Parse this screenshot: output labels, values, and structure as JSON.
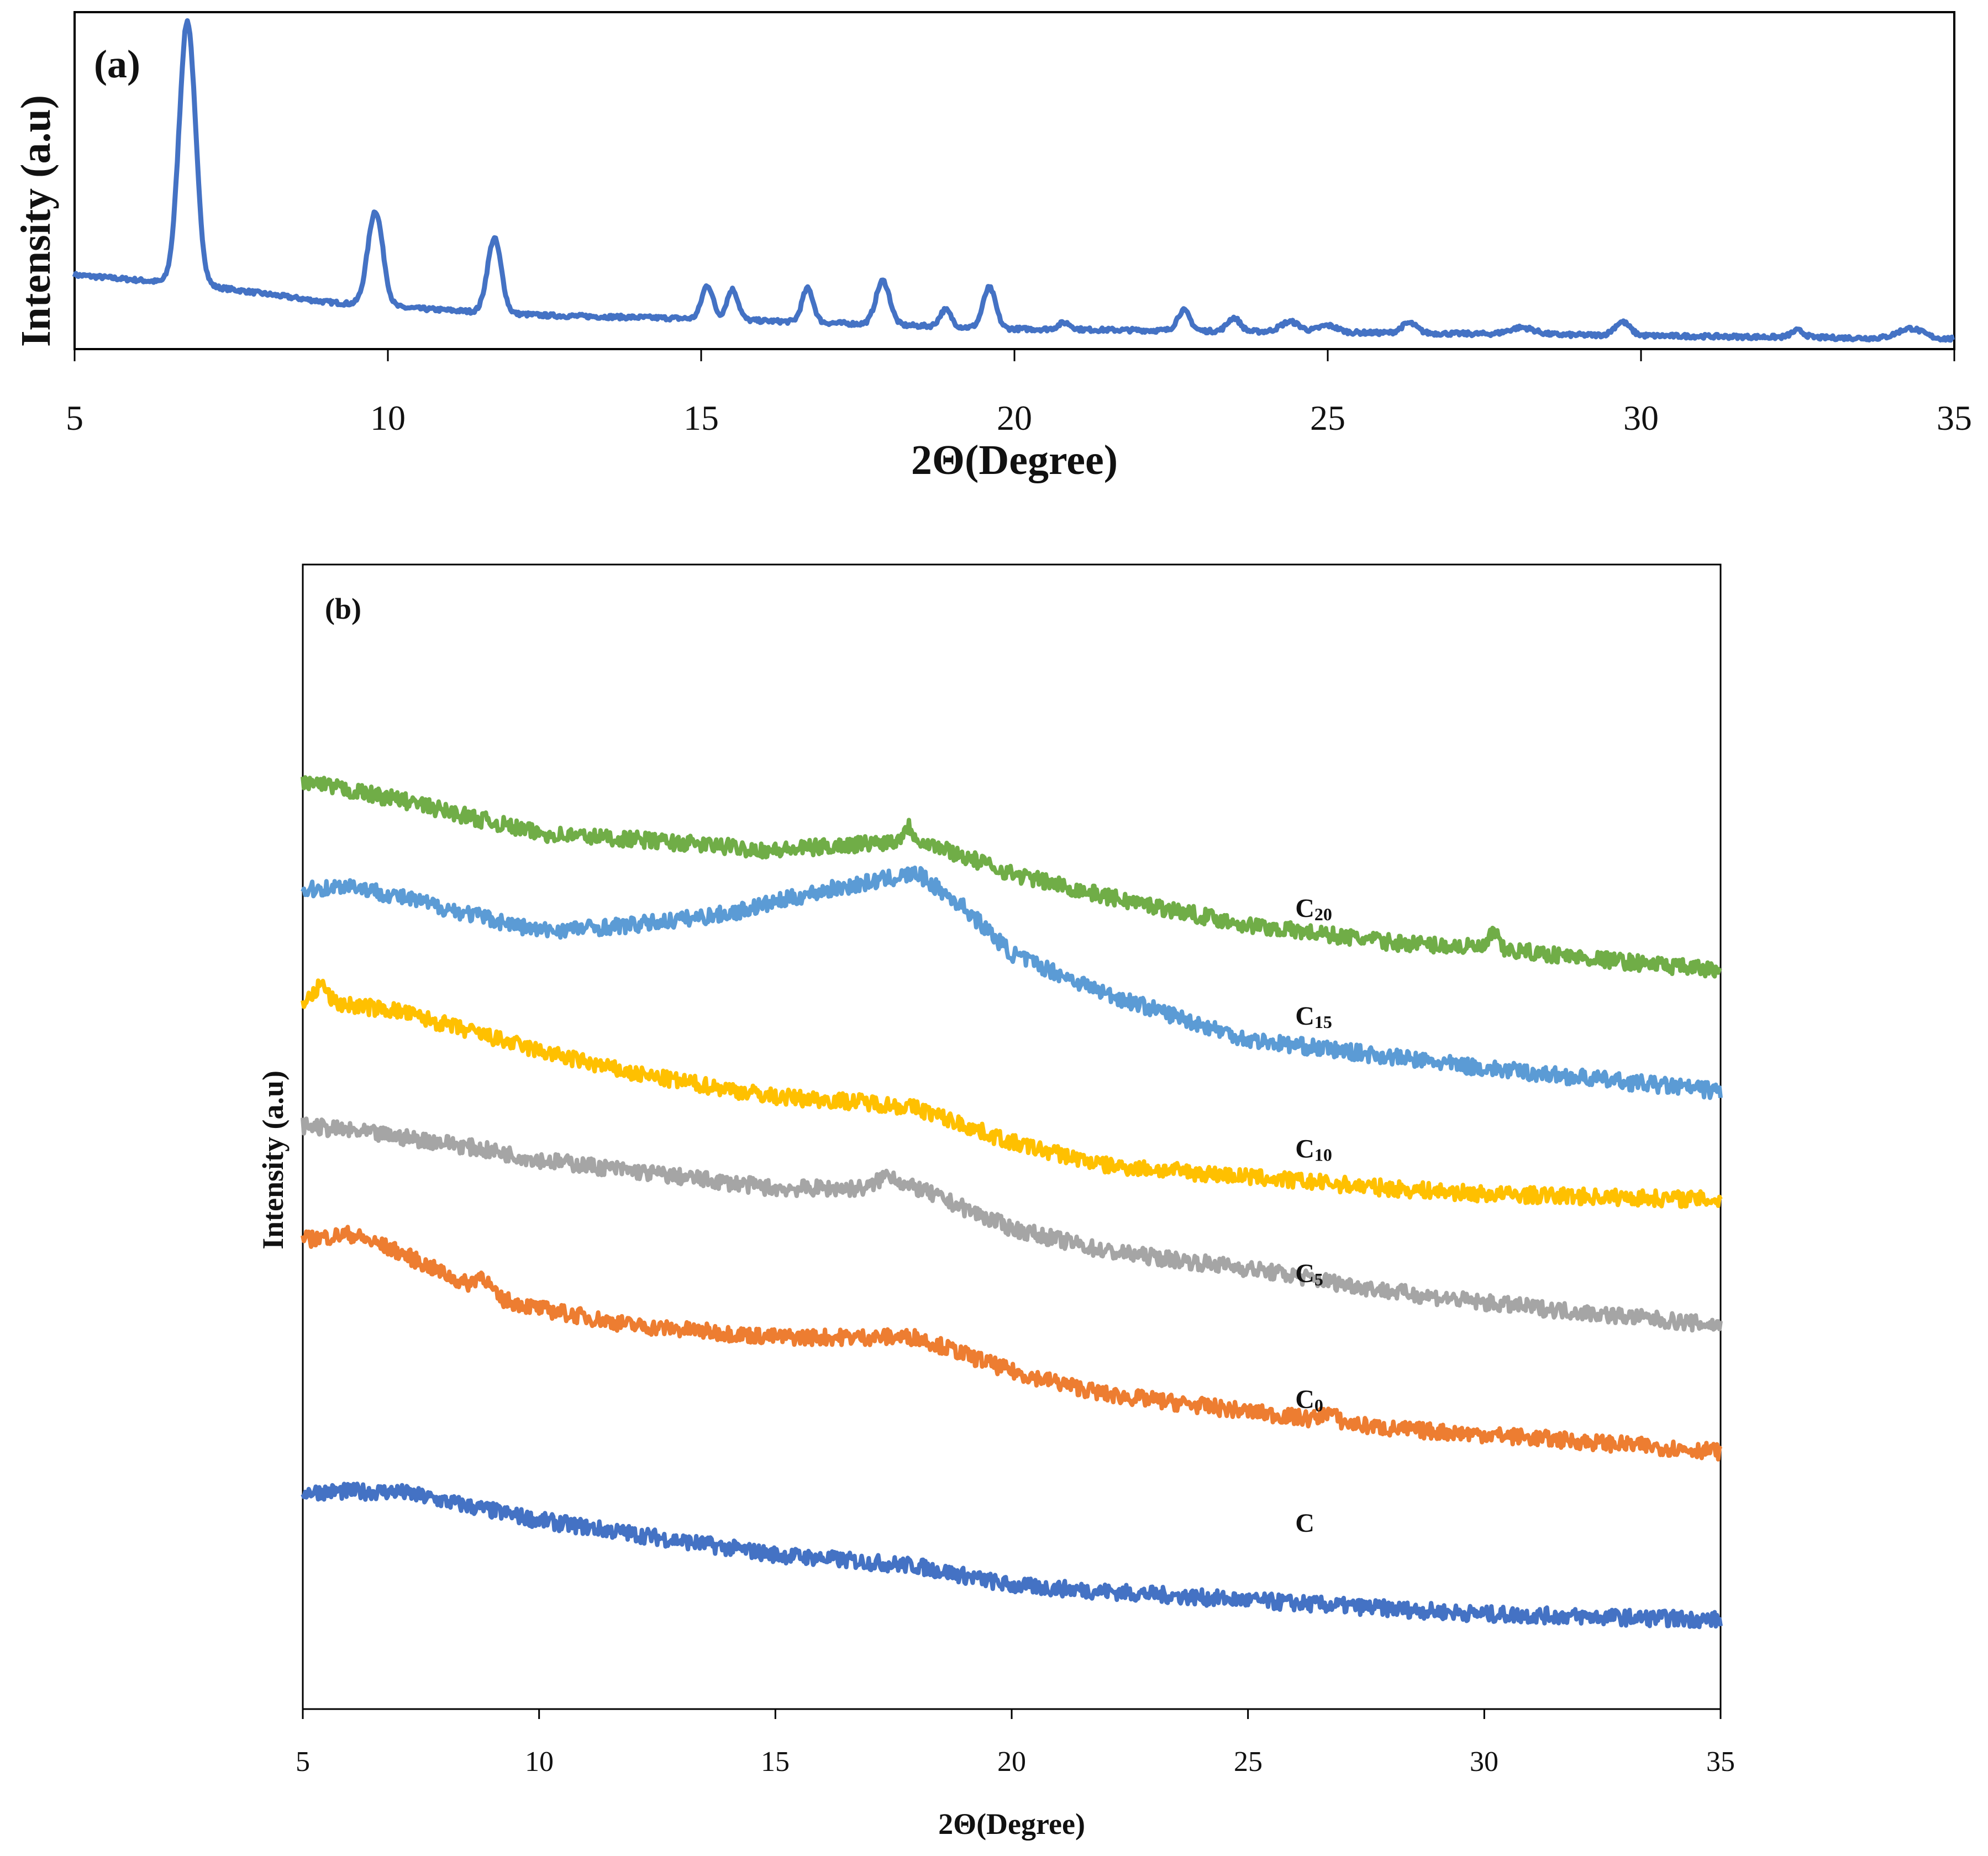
{
  "chart_data": [
    {
      "type": "line",
      "panel_label": "(a)",
      "title": "",
      "xlabel": "2Θ(Degree)",
      "ylabel": "Intensity (a.u)",
      "xlim": [
        5,
        35
      ],
      "xticks": [
        "5",
        "10",
        "15",
        "20",
        "25",
        "30",
        "35"
      ],
      "ylim": [
        0,
        100
      ],
      "yticks": [],
      "grid": false,
      "legend": "none",
      "series": [
        {
          "name": "pattern (a)",
          "color": "#4472C4",
          "baseline": [
            [
              5,
              22
            ],
            [
              7,
              19
            ],
            [
              9,
              14
            ],
            [
              10.5,
              12
            ],
            [
              12.5,
              10
            ],
            [
              15,
              9
            ],
            [
              20,
              6
            ],
            [
              25,
              5
            ],
            [
              30,
              4
            ],
            [
              35,
              3
            ]
          ],
          "peaks": [
            [
              6.8,
              78,
              0.13
            ],
            [
              9.8,
              28,
              0.12
            ],
            [
              11.7,
              22,
              0.11
            ],
            [
              15.1,
              10,
              0.09
            ],
            [
              15.5,
              9,
              0.09
            ],
            [
              16.7,
              10,
              0.09
            ],
            [
              17.9,
              13,
              0.11
            ],
            [
              18.9,
              5,
              0.09
            ],
            [
              19.6,
              12,
              0.1
            ],
            [
              20.8,
              2,
              0.1
            ],
            [
              22.7,
              6,
              0.1
            ],
            [
              23.5,
              4,
              0.1
            ],
            [
              24.4,
              3,
              0.15
            ],
            [
              25.0,
              2,
              0.15
            ],
            [
              26.3,
              3,
              0.12
            ],
            [
              28.1,
              2,
              0.2
            ],
            [
              29.7,
              4,
              0.12
            ],
            [
              32.5,
              2,
              0.1
            ],
            [
              34.3,
              3,
              0.2
            ]
          ]
        }
      ]
    },
    {
      "type": "line",
      "panel_label": "(b)",
      "title": "",
      "xlabel": "2Θ(Degree)",
      "ylabel": "Intensity (a.u)",
      "xlim": [
        5,
        35
      ],
      "xticks": [
        "5",
        "10",
        "15",
        "20",
        "25",
        "30",
        "35"
      ],
      "ylim": [
        0,
        100
      ],
      "yticks": [],
      "grid": false,
      "legend": "inline labels",
      "series": [
        {
          "name": "C",
          "label_main": "C",
          "label_sub": "",
          "label_at": [
            26,
            15.5
          ],
          "color": "#4472C4",
          "profile": [
            [
              5,
              19
            ],
            [
              7,
              19
            ],
            [
              10,
              16.5
            ],
            [
              15,
              13.5
            ],
            [
              18,
              12.5
            ],
            [
              20,
              10.8
            ],
            [
              25,
              9.5
            ],
            [
              30,
              8.3
            ],
            [
              35,
              7.8
            ]
          ],
          "bumps": []
        },
        {
          "name": "C0",
          "label_main": "C",
          "label_sub": "0",
          "label_at": [
            26,
            26.3
          ],
          "color": "#ED7D31",
          "profile": [
            [
              5,
              41
            ],
            [
              6,
              41.5
            ],
            [
              7,
              40
            ],
            [
              9,
              36
            ],
            [
              10,
              35
            ],
            [
              12,
              33.5
            ],
            [
              15,
              32.5
            ],
            [
              18,
              32.5
            ],
            [
              20,
              29.5
            ],
            [
              22,
              27.5
            ],
            [
              25,
              26
            ],
            [
              28,
              24.5
            ],
            [
              30,
              24
            ],
            [
              35,
              22.5
            ]
          ],
          "bumps": [
            [
              8.8,
              1.5,
              0.15
            ],
            [
              26.7,
              0.8,
              0.15
            ]
          ]
        },
        {
          "name": "C5",
          "label_main": "C",
          "label_sub": "5",
          "label_at": [
            26,
            37.3
          ],
          "color": "#A5A5A5",
          "profile": [
            [
              5,
              51
            ],
            [
              8,
              49.5
            ],
            [
              10,
              48
            ],
            [
              12,
              47
            ],
            [
              15,
              45.5
            ],
            [
              18,
              45.5
            ],
            [
              20,
              42
            ],
            [
              22,
              40
            ],
            [
              25,
              38.5
            ],
            [
              28,
              36.5
            ],
            [
              30,
              35.5
            ],
            [
              35,
              33.5
            ]
          ],
          "bumps": [
            [
              17.4,
              1.2,
              0.2
            ]
          ]
        },
        {
          "name": "C10",
          "label_main": "C",
          "label_sub": "10",
          "label_at": [
            26,
            48.2
          ],
          "color": "#FFC000",
          "profile": [
            [
              5,
              62
            ],
            [
              7,
              61
            ],
            [
              10,
              57.5
            ],
            [
              12,
              55.5
            ],
            [
              15,
              53.5
            ],
            [
              17,
              53
            ],
            [
              18,
              52.5
            ],
            [
              20,
              49.5
            ],
            [
              22,
              47.5
            ],
            [
              25,
              46.5
            ],
            [
              28,
              45.5
            ],
            [
              30,
              45
            ],
            [
              35,
              44.5
            ]
          ],
          "bumps": [
            [
              5.4,
              1.5,
              0.12
            ]
          ]
        },
        {
          "name": "C15",
          "label_main": "C",
          "label_sub": "15",
          "label_at": [
            26,
            59.8
          ],
          "color": "#5B9BD5",
          "profile": [
            [
              5,
              71.5
            ],
            [
              6,
              72
            ],
            [
              8,
              70
            ],
            [
              10,
              68
            ],
            [
              12,
              68.5
            ],
            [
              14,
              69.5
            ],
            [
              16,
              71.5
            ],
            [
              18,
              73
            ],
            [
              19,
              70
            ],
            [
              20,
              66
            ],
            [
              22,
              62.5
            ],
            [
              25,
              58.5
            ],
            [
              28,
              57
            ],
            [
              30,
              56
            ],
            [
              35,
              54
            ]
          ],
          "bumps": []
        },
        {
          "name": "C20",
          "label_main": "C",
          "label_sub": "20",
          "label_at": [
            26,
            69.2
          ],
          "color": "#70AD47",
          "profile": [
            [
              5,
              81
            ],
            [
              7,
              79.5
            ],
            [
              10,
              76.5
            ],
            [
              12,
              76
            ],
            [
              15,
              75
            ],
            [
              18,
              76
            ],
            [
              20,
              73
            ],
            [
              22,
              71
            ],
            [
              25,
              68.5
            ],
            [
              28,
              67
            ],
            [
              30,
              66.5
            ],
            [
              35,
              64.5
            ]
          ],
          "bumps": [
            [
              17.8,
              1.2,
              0.1
            ],
            [
              30.2,
              1.5,
              0.08
            ]
          ]
        }
      ]
    }
  ]
}
